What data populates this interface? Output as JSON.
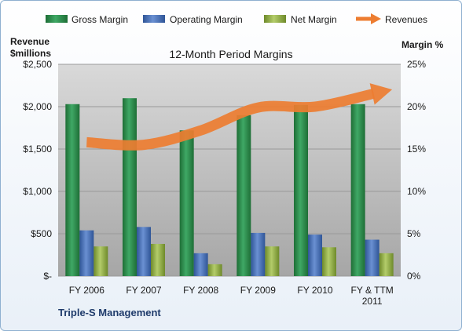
{
  "chart_data": {
    "type": "bar",
    "title": "12-Month Period Margins",
    "categories": [
      [
        "FY 2006"
      ],
      [
        "FY 2007"
      ],
      [
        "FY 2008"
      ],
      [
        "FY 2009"
      ],
      [
        "FY 2010"
      ],
      [
        "FY & TTM",
        "2011"
      ]
    ],
    "series": [
      {
        "name": "Gross Margin",
        "axis": "right",
        "values": [
          20.3,
          21.0,
          17.2,
          19.0,
          20.2,
          20.3
        ],
        "color": "#2e8b4e"
      },
      {
        "name": "Operating Margin",
        "axis": "right",
        "values": [
          5.4,
          5.8,
          2.7,
          5.1,
          4.9,
          4.3
        ],
        "color": "#4a72b8"
      },
      {
        "name": "Net Margin",
        "axis": "right",
        "values": [
          3.5,
          3.8,
          1.4,
          3.5,
          3.4,
          2.7
        ],
        "color": "#8fac3e"
      }
    ],
    "revenues": {
      "name": "Revenues",
      "axis": "left",
      "values": [
        1580,
        1550,
        1720,
        1990,
        2000,
        2150
      ],
      "color": "#ed7d31",
      "style": "arrow"
    },
    "ylabel_left": [
      "Revenue",
      "$millions"
    ],
    "ylabel_right": "Margin %",
    "ylim_left": [
      0,
      2500
    ],
    "ylim_right": [
      0,
      25
    ],
    "yticks_left": [
      "$-",
      "$500",
      "$1,000",
      "$1,500",
      "$2,000",
      "$2,500"
    ],
    "yticks_right": [
      "0%",
      "5%",
      "10%",
      "15%",
      "20%",
      "25%"
    ],
    "grid": true,
    "legend": "top",
    "legend_items": [
      "Gross Margin",
      "Operating Margin",
      "Net Margin",
      "Revenues"
    ],
    "footer": "Triple-S Management"
  }
}
